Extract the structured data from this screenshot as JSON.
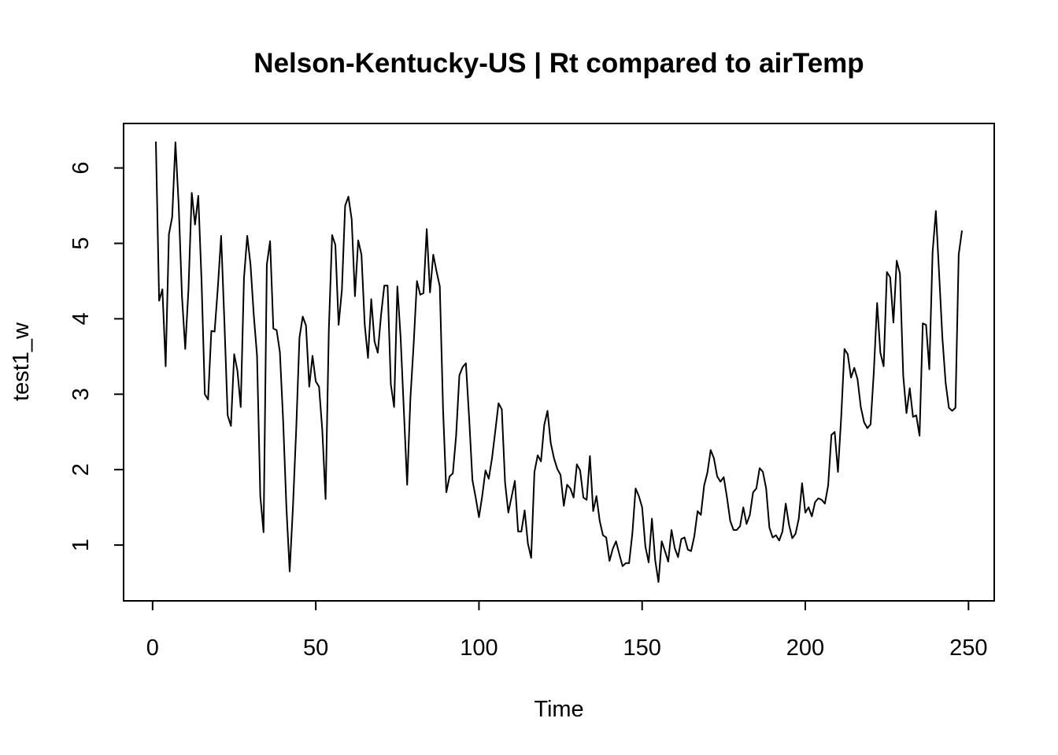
{
  "chart_data": {
    "type": "line",
    "title": "Nelson-Kentucky-US | Rt compared to airTemp",
    "xlabel": "Time",
    "ylabel": "test1_w",
    "xlim": [
      1,
      248
    ],
    "ylim": [
      0.5,
      6.35
    ],
    "xticks": [
      0,
      50,
      100,
      150,
      200,
      250
    ],
    "yticks": [
      1,
      2,
      3,
      4,
      5,
      6
    ],
    "grid": false,
    "legend": "none",
    "series": [
      {
        "color": "#000000",
        "x": [
          1,
          2,
          3,
          4,
          5,
          6,
          7,
          8,
          9,
          10,
          11,
          12,
          13,
          14,
          15,
          16,
          17,
          18,
          19,
          20,
          21,
          22,
          23,
          24,
          25,
          26,
          27,
          28,
          29,
          30,
          31,
          32,
          33,
          34,
          35,
          36,
          37,
          38,
          39,
          40,
          41,
          42,
          43,
          44,
          45,
          46,
          47,
          48,
          49,
          50,
          51,
          52,
          53,
          54,
          55,
          56,
          57,
          58,
          59,
          60,
          61,
          62,
          63,
          64,
          65,
          66,
          67,
          68,
          69,
          70,
          71,
          72,
          73,
          74,
          75,
          76,
          77,
          78,
          79,
          80,
          81,
          82,
          83,
          84,
          85,
          86,
          87,
          88,
          89,
          90,
          91,
          92,
          93,
          94,
          95,
          96,
          97,
          98,
          99,
          100,
          101,
          102,
          103,
          104,
          105,
          106,
          107,
          108,
          109,
          110,
          111,
          112,
          113,
          114,
          115,
          116,
          117,
          118,
          119,
          120,
          121,
          122,
          123,
          124,
          125,
          126,
          127,
          128,
          129,
          130,
          131,
          132,
          133,
          134,
          135,
          136,
          137,
          138,
          139,
          140,
          141,
          142,
          143,
          144,
          145,
          146,
          147,
          148,
          149,
          150,
          151,
          152,
          153,
          154,
          155,
          156,
          157,
          158,
          159,
          160,
          161,
          162,
          163,
          164,
          165,
          166,
          167,
          168,
          169,
          170,
          171,
          172,
          173,
          174,
          175,
          176,
          177,
          178,
          179,
          180,
          181,
          182,
          183,
          184,
          185,
          186,
          187,
          188,
          189,
          190,
          191,
          192,
          193,
          194,
          195,
          196,
          197,
          198,
          199,
          200,
          201,
          202,
          203,
          204,
          205,
          206,
          207,
          208,
          209,
          210,
          211,
          212,
          213,
          214,
          215,
          216,
          217,
          218,
          219,
          220,
          221,
          222,
          223,
          224,
          225,
          226,
          227,
          228,
          229,
          230,
          231,
          232,
          233,
          234,
          235,
          236,
          237,
          238,
          239,
          240,
          241,
          242,
          243,
          244,
          245,
          246,
          247,
          248
        ],
        "values": [
          6.35,
          4.24,
          4.39,
          3.37,
          5.12,
          5.35,
          6.34,
          5.5,
          4.3,
          3.6,
          4.4,
          5.67,
          5.25,
          5.63,
          4.5,
          3.0,
          2.93,
          3.84,
          3.83,
          4.42,
          5.1,
          3.96,
          2.72,
          2.58,
          3.53,
          3.31,
          2.83,
          4.54,
          5.1,
          4.72,
          4.05,
          3.51,
          1.65,
          1.17,
          4.72,
          5.03,
          3.87,
          3.85,
          3.56,
          2.65,
          1.5,
          0.65,
          1.5,
          2.53,
          3.75,
          4.03,
          3.91,
          3.1,
          3.51,
          3.17,
          3.1,
          2.52,
          1.61,
          3.85,
          5.11,
          4.98,
          3.92,
          4.38,
          5.5,
          5.62,
          5.32,
          4.3,
          5.04,
          4.85,
          3.92,
          3.48,
          4.26,
          3.7,
          3.55,
          4.05,
          4.44,
          4.44,
          3.13,
          2.83,
          4.43,
          3.75,
          2.77,
          1.8,
          2.95,
          3.67,
          4.5,
          4.32,
          4.34,
          5.19,
          4.35,
          4.85,
          4.63,
          4.43,
          2.8,
          1.7,
          1.91,
          1.95,
          2.45,
          3.25,
          3.36,
          3.41,
          2.68,
          1.86,
          1.63,
          1.37,
          1.65,
          1.99,
          1.88,
          2.15,
          2.51,
          2.88,
          2.8,
          1.83,
          1.43,
          1.64,
          1.85,
          1.18,
          1.18,
          1.46,
          1.02,
          0.83,
          1.97,
          2.19,
          2.11,
          2.59,
          2.78,
          2.35,
          2.15,
          2.01,
          1.93,
          1.52,
          1.8,
          1.75,
          1.63,
          2.07,
          1.99,
          1.63,
          1.6,
          2.18,
          1.45,
          1.65,
          1.32,
          1.13,
          1.1,
          0.79,
          0.95,
          1.05,
          0.88,
          0.72,
          0.76,
          0.76,
          1.15,
          1.75,
          1.65,
          1.5,
          0.98,
          0.77,
          1.35,
          0.8,
          0.51,
          1.05,
          0.92,
          0.78,
          1.2,
          0.96,
          0.84,
          1.08,
          1.1,
          0.94,
          0.92,
          1.12,
          1.45,
          1.4,
          1.79,
          1.96,
          2.26,
          2.15,
          1.91,
          1.84,
          1.9,
          1.63,
          1.32,
          1.2,
          1.2,
          1.25,
          1.5,
          1.28,
          1.4,
          1.7,
          1.75,
          2.02,
          1.97,
          1.75,
          1.23,
          1.1,
          1.13,
          1.06,
          1.18,
          1.55,
          1.27,
          1.09,
          1.15,
          1.35,
          1.82,
          1.43,
          1.5,
          1.38,
          1.57,
          1.62,
          1.6,
          1.55,
          1.79,
          2.46,
          2.5,
          1.97,
          2.7,
          3.6,
          3.53,
          3.22,
          3.35,
          3.2,
          2.83,
          2.63,
          2.55,
          2.6,
          3.3,
          4.21,
          3.55,
          3.37,
          4.62,
          4.55,
          3.95,
          4.77,
          4.6,
          3.25,
          2.75,
          3.08,
          2.7,
          2.72,
          2.45,
          3.94,
          3.92,
          3.33,
          4.88,
          5.43,
          4.6,
          3.75,
          3.15,
          2.82,
          2.78,
          2.82,
          4.85,
          5.17
        ]
      }
    ]
  }
}
